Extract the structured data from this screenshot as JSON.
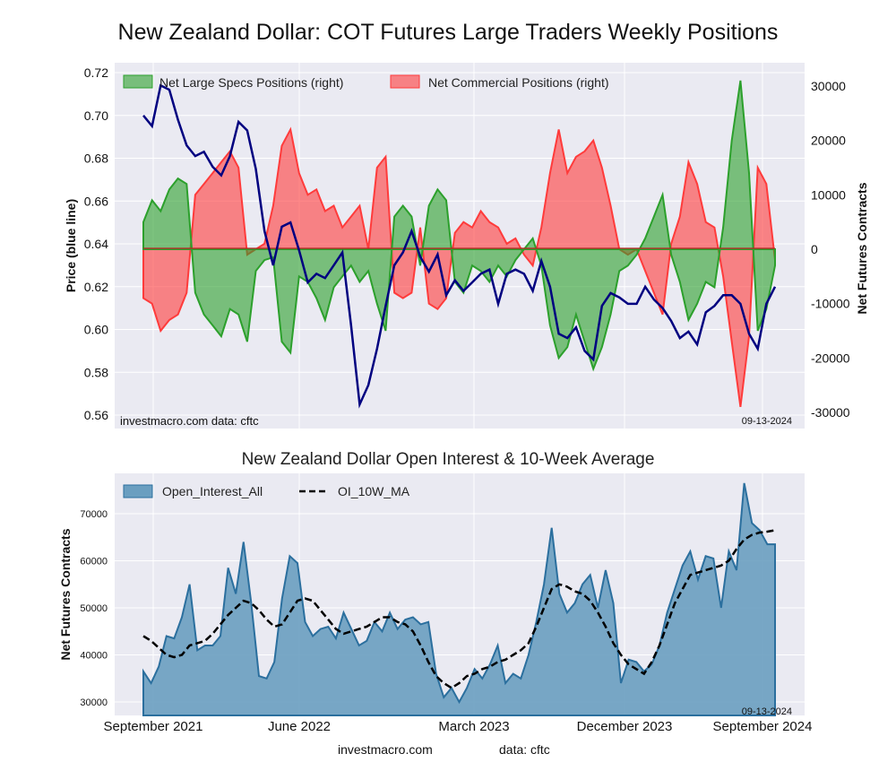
{
  "page": {
    "title": "New Zealand Dollar: COT Futures Large Traders Weekly Positions",
    "footer_site": "investmacro.com",
    "footer_source": "data: cftc"
  },
  "chart_data": [
    {
      "type": "area",
      "title": "New Zealand Dollar: COT Futures Large Traders Weekly Positions",
      "ylabel_left": "Price (blue line)",
      "ylabel_right": "Net Futures Contracts",
      "ylim_left": [
        0.56,
        0.72
      ],
      "ylim_right": [
        -30000,
        30000
      ],
      "left_ticks": [
        "0.56",
        "0.58",
        "0.60",
        "0.62",
        "0.64",
        "0.66",
        "0.68",
        "0.70",
        "0.72"
      ],
      "right_ticks": [
        "-30000",
        "-20000",
        "-10000",
        "0",
        "10000",
        "20000",
        "30000"
      ],
      "watermark": "investmacro.com    data: cftc",
      "date_label": "09-13-2024",
      "legend_position": "top-left",
      "legend": [
        "Net Large Specs Positions (right)",
        "Net Commercial Positions (right)"
      ],
      "colors": {
        "specs": "#2ca02c",
        "commercial": "#ff3b3b",
        "price": "#000080"
      },
      "x": [
        "2021-08",
        "2021-09",
        "2021-09",
        "2021-10",
        "2021-10",
        "2021-11",
        "2021-11",
        "2021-12",
        "2021-12",
        "2022-01",
        "2022-01",
        "2022-02",
        "2022-02",
        "2022-03",
        "2022-03",
        "2022-04",
        "2022-04",
        "2022-05",
        "2022-05",
        "2022-06",
        "2022-06",
        "2022-07",
        "2022-07",
        "2022-08",
        "2022-08",
        "2022-09",
        "2022-09",
        "2022-10",
        "2022-10",
        "2022-11",
        "2022-11",
        "2022-12",
        "2022-12",
        "2023-01",
        "2023-01",
        "2023-02",
        "2023-02",
        "2023-03",
        "2023-03",
        "2023-04",
        "2023-04",
        "2023-05",
        "2023-05",
        "2023-06",
        "2023-06",
        "2023-07",
        "2023-07",
        "2023-08",
        "2023-08",
        "2023-09",
        "2023-09",
        "2023-10",
        "2023-10",
        "2023-11",
        "2023-11",
        "2023-12",
        "2023-12",
        "2024-01",
        "2024-01",
        "2024-02",
        "2024-02",
        "2024-03",
        "2024-03",
        "2024-04",
        "2024-04",
        "2024-05",
        "2024-05",
        "2024-06",
        "2024-06",
        "2024-07",
        "2024-07",
        "2024-08",
        "2024-08",
        "2024-09"
      ],
      "price": [
        0.7,
        0.695,
        0.714,
        0.712,
        0.698,
        0.686,
        0.681,
        0.683,
        0.676,
        0.672,
        0.681,
        0.697,
        0.693,
        0.675,
        0.646,
        0.63,
        0.648,
        0.65,
        0.637,
        0.622,
        0.626,
        0.624,
        0.63,
        0.636,
        0.602,
        0.565,
        0.574,
        0.591,
        0.611,
        0.63,
        0.636,
        0.646,
        0.634,
        0.627,
        0.635,
        0.616,
        0.623,
        0.618,
        0.622,
        0.626,
        0.628,
        0.612,
        0.626,
        0.628,
        0.626,
        0.618,
        0.632,
        0.62,
        0.598,
        0.596,
        0.601,
        0.59,
        0.586,
        0.611,
        0.617,
        0.615,
        0.612,
        0.612,
        0.62,
        0.614,
        0.61,
        0.604,
        0.596,
        0.599,
        0.593,
        0.608,
        0.611,
        0.616,
        0.616,
        0.612,
        0.598,
        0.591,
        0.612,
        0.62
      ],
      "specs": [
        5000,
        9000,
        7000,
        11000,
        13000,
        12000,
        -8000,
        -12000,
        -14000,
        -16000,
        -11000,
        -12000,
        -17000,
        -4000,
        -2000,
        -1500,
        -17000,
        -19000,
        -5000,
        -6000,
        -9000,
        -13000,
        -7000,
        -5000,
        -3000,
        -6000,
        -4000,
        -10000,
        -15000,
        6000,
        8000,
        6000,
        -3000,
        8000,
        11000,
        9000,
        -6000,
        -8000,
        -3000,
        -4000,
        -6000,
        -3000,
        -5000,
        -2000,
        0,
        2000,
        -3000,
        -14000,
        -20000,
        -18000,
        -12000,
        -17000,
        -22000,
        -18000,
        -12000,
        -4000,
        -3000,
        -1000,
        2000,
        6000,
        10000,
        -1000,
        -6000,
        -13000,
        -10000,
        -6000,
        -7000,
        4000,
        20000,
        31000,
        14000,
        -15000,
        -11000,
        -3000
      ],
      "commercial": [
        -9000,
        -10000,
        -15000,
        -13000,
        -12000,
        -8000,
        10000,
        12000,
        14000,
        16000,
        18000,
        15000,
        -1000,
        0,
        1000,
        8000,
        19000,
        22000,
        14000,
        10000,
        11000,
        7000,
        8000,
        4000,
        6000,
        8000,
        0,
        15000,
        17000,
        -8000,
        -9000,
        -8000,
        4000,
        -10000,
        -11000,
        -9000,
        3000,
        5000,
        4000,
        7000,
        5000,
        4000,
        1000,
        2000,
        -1000,
        -3000,
        4000,
        14000,
        22000,
        14000,
        17000,
        18000,
        20000,
        15000,
        8000,
        0,
        -1000,
        0,
        -4000,
        -8000,
        -12000,
        1000,
        6000,
        16000,
        12000,
        5000,
        4000,
        -5000,
        -17000,
        -29000,
        -16000,
        15000,
        12000,
        -2000
      ]
    },
    {
      "type": "area",
      "title": "New Zealand Dollar Open Interest & 10-Week Average",
      "ylabel": "Net Futures Contracts",
      "ylim": [
        27000,
        79000
      ],
      "y_ticks": [
        "30000",
        "40000",
        "50000",
        "60000",
        "70000"
      ],
      "x_ticks": [
        "September 2021",
        "June 2022",
        "March 2023",
        "December 2023",
        "September 2024"
      ],
      "date_label": "09-13-2024",
      "legend_position": "top-left",
      "legend": [
        "Open_Interest_All",
        "OI_10W_MA"
      ],
      "colors": {
        "oi_fill": "#6a9ec0",
        "oi_line": "#1f77b4",
        "ma": "#000000"
      },
      "open_interest": [
        36500,
        34000,
        37500,
        44000,
        43500,
        48000,
        55000,
        41000,
        42000,
        42000,
        44000,
        58500,
        53000,
        64000,
        51000,
        35500,
        35000,
        38500,
        52000,
        61000,
        59500,
        47000,
        44000,
        45500,
        46000,
        43500,
        49000,
        45500,
        42000,
        43000,
        47000,
        45000,
        49000,
        45500,
        47500,
        48000,
        46500,
        47000,
        36000,
        31000,
        33000,
        30000,
        33000,
        37000,
        35000,
        38000,
        42000,
        34000,
        36000,
        35000,
        40000,
        47000,
        55000,
        67000,
        53000,
        49000,
        51000,
        55000,
        57000,
        50000,
        58000,
        51000,
        34000,
        39000,
        38500,
        36500,
        38000,
        42000,
        49000,
        54000,
        59000,
        62000,
        56000,
        61000,
        60500,
        50000,
        62000,
        58000,
        76500,
        68000,
        66500,
        63500,
        63500
      ],
      "oi_ma": [
        44000,
        43000,
        41500,
        40000,
        39500,
        40000,
        42000,
        42500,
        43000,
        44500,
        46500,
        48500,
        50000,
        51500,
        51000,
        49500,
        47500,
        46000,
        46500,
        49000,
        51500,
        52000,
        51500,
        49500,
        47500,
        45500,
        44500,
        45000,
        45500,
        46000,
        47000,
        48000,
        48000,
        47000,
        46500,
        45000,
        42000,
        38500,
        35500,
        34000,
        33000,
        34000,
        35500,
        36000,
        37000,
        37500,
        38500,
        39000,
        40000,
        41000,
        42500,
        46000,
        50000,
        54000,
        55000,
        54500,
        53500,
        53000,
        51500,
        49000,
        46000,
        42500,
        40000,
        38000,
        37000,
        36000,
        38500,
        42000,
        46500,
        51000,
        54000,
        57000,
        57500,
        58000,
        58500,
        59000,
        60000,
        62500,
        64500,
        65500,
        66000,
        66200,
        66500
      ]
    }
  ]
}
